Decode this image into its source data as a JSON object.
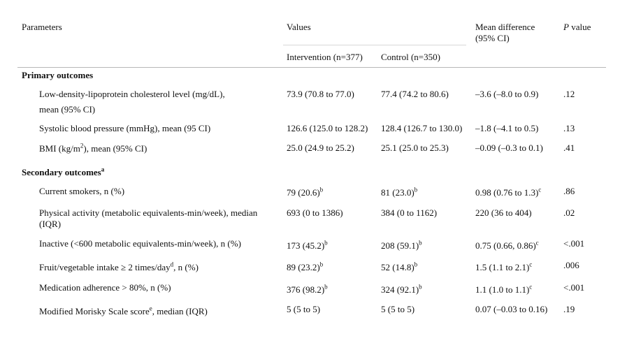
{
  "header": {
    "parameters": "Parameters",
    "values": "Values",
    "mean_diff": "Mean difference (95% CI)",
    "p_italic": "P",
    "p_rest": " value",
    "intervention": "Intervention (n=377)",
    "control": "Control (n=350)"
  },
  "primary": {
    "title": "Primary outcomes",
    "rows": [
      {
        "param": "Low-density-lipoprotein cholesterol level (mg/dL),",
        "param2": "mean (95% CI)",
        "intervention": "73.9 (70.8 to 77.0)",
        "control": "77.4 (74.2 to 80.6)",
        "mean_diff": "–3.6 (–8.0 to 0.9)",
        "p": ".12"
      },
      {
        "param": "Systolic blood pressure (mmHg), mean (95 CI)",
        "intervention": "126.6 (125.0 to 128.2)",
        "control": "128.4 (126.7 to 130.0)",
        "mean_diff": "–1.8 (–4.1 to 0.5)",
        "p": ".13"
      },
      {
        "param_a": "BMI (kg/m",
        "param_sup": "2",
        "param_b": "), mean (95% CI)",
        "intervention": "25.0 (24.9 to 25.2)",
        "control": "25.1 (25.0 to 25.3)",
        "mean_diff": "–0.09 (–0.3 to 0.1)",
        "p": ".41"
      }
    ]
  },
  "secondary": {
    "title": "Secondary outcomes",
    "title_sup": "a",
    "rows": [
      {
        "param": "Current smokers, n (%)",
        "intervention": "79 (20.6)",
        "i_sup": "b",
        "control": "81 (23.0)",
        "c_sup": "b",
        "mean_diff": "0.98 (0.76 to 1.3)",
        "m_sup": "c",
        "p": ".86"
      },
      {
        "param": "Physical activity (metabolic equivalents-min/week), median (IQR)",
        "intervention": "693 (0 to 1386)",
        "control": "384 (0 to 1162)",
        "mean_diff": "220 (36 to 404)",
        "p": ".02"
      },
      {
        "param": "Inactive (<600 metabolic equivalents-min/week), n (%)",
        "intervention": "173 (45.2)",
        "i_sup": "b",
        "control": "208 (59.1)",
        "c_sup": "b",
        "mean_diff": "0.75 (0.66, 0.86)",
        "m_sup": "c",
        "p": "<.001"
      },
      {
        "param_a": "Fruit/vegetable intake ≥ 2 times/day",
        "param_sup": "d",
        "param_b": ", n (%)",
        "intervention": "89 (23.2)",
        "i_sup": "b",
        "control": "52 (14.8)",
        "c_sup": "b",
        "mean_diff": "1.5 (1.1 to 2.1)",
        "m_sup": "c",
        "p": ".006"
      },
      {
        "param": "Medication adherence > 80%, n (%)",
        "intervention": "376 (98.2)",
        "i_sup": "b",
        "control": "324 (92.1)",
        "c_sup": "b",
        "mean_diff": "1.1 (1.0 to 1.1)",
        "m_sup": "c",
        "p": "<.001"
      },
      {
        "param_a": "Modified Morisky Scale score",
        "param_sup": "e",
        "param_b": ", median (IQR)",
        "intervention": "5 (5 to 5)",
        "control": "5 (5 to 5)",
        "mean_diff": "0.07 (–0.03 to 0.16)",
        "p": ".19"
      }
    ]
  }
}
